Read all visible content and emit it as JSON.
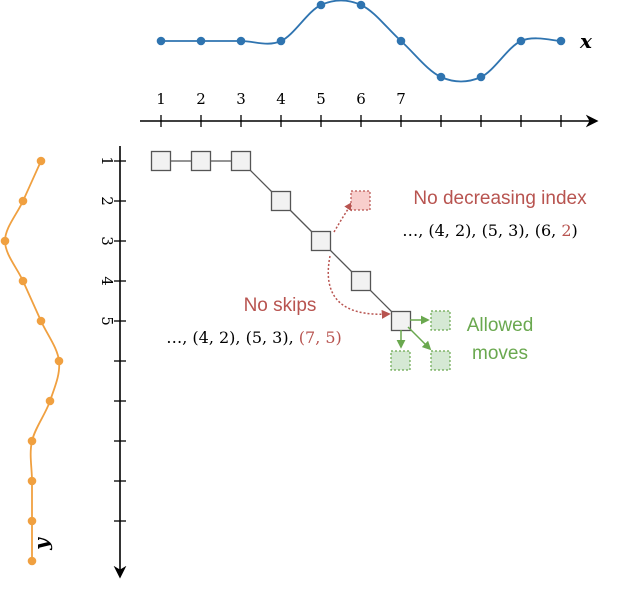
{
  "colors": {
    "x_series": "#2f74b0",
    "y_series": "#f0a040",
    "forbidden": "#b85450",
    "allowed": "#6aa84f",
    "allowed_fill": "#d5e8d4",
    "forbidden_fill": "#f8cecc",
    "cell_fill": "#f2f2f2",
    "axis": "#000000",
    "path": "#555555"
  },
  "x_series": {
    "label": "x",
    "values": [
      0,
      0,
      0,
      0,
      1,
      1,
      0,
      -1,
      -1,
      0,
      0
    ]
  },
  "y_series": {
    "label": "y",
    "values": [
      0,
      -1,
      -2,
      -1,
      0,
      1,
      0.5,
      -0.5,
      -0.5,
      -0.5,
      -0.5
    ]
  },
  "x_axis": {
    "tick_labels": [
      "1",
      "2",
      "3",
      "4",
      "5",
      "6",
      "7"
    ],
    "tick_count": 11
  },
  "y_axis": {
    "tick_labels": [
      "1",
      "2",
      "3",
      "4",
      "5"
    ],
    "tick_count": 10
  },
  "warping_path": [
    [
      1,
      1
    ],
    [
      2,
      1
    ],
    [
      3,
      1
    ],
    [
      4,
      2
    ],
    [
      5,
      3
    ],
    [
      6,
      4
    ],
    [
      7,
      5
    ]
  ],
  "annotations": {
    "no_decreasing": {
      "title": "No decreasing index",
      "seq_prefix": "…, (4, 2), (5, 3), (6, ",
      "seq_bad": "2",
      "seq_suffix": ")"
    },
    "no_skips": {
      "title": "No skips",
      "seq_prefix": "…, (4, 2), (5, 3), ",
      "seq_bad": "(7, 5)"
    },
    "allowed": {
      "line1": "Allowed",
      "line2": "moves"
    }
  }
}
